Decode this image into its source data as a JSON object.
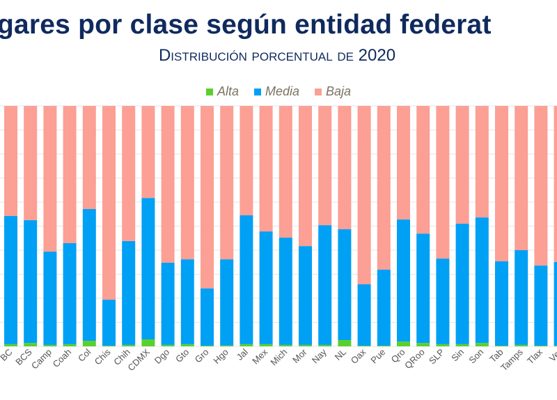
{
  "chart_data": {
    "type": "bar",
    "stacked": true,
    "title": "gares por clase según entidad federat",
    "subtitle": "Distribución porcentual de 2020",
    "xlabel": "",
    "ylabel": "",
    "ylim": [
      0,
      100
    ],
    "grid": true,
    "legend_position": "top",
    "categories": [
      "BC",
      "BCS",
      "Camp",
      "Coah",
      "Col",
      "Chis",
      "Chih",
      "CDMX",
      "Dgo",
      "Gto",
      "Gro",
      "Hgo",
      "Jal",
      "Mex",
      "Mich",
      "Mor",
      "Nay",
      "NL",
      "Oax",
      "Pue",
      "Qro",
      "QRoo",
      "SLP",
      "Sin",
      "Son",
      "Tab",
      "Tamps",
      "Tlax",
      "Ver"
    ],
    "series": [
      {
        "name": "Alta",
        "color": "#5ad02e",
        "values": [
          0.9,
          1.4,
          0.6,
          0.9,
          2.3,
          0.3,
          0.6,
          2.9,
          0.6,
          0.9,
          0.3,
          0.4,
          0.9,
          0.9,
          0.6,
          0.6,
          0.6,
          2.6,
          0.3,
          0.3,
          2.0,
          1.4,
          0.9,
          0.9,
          1.4,
          0.3,
          0.6,
          0.3,
          0.3
        ]
      },
      {
        "name": "Media",
        "color": "#00a0f5",
        "values": [
          53.3,
          51.1,
          38.8,
          42.0,
          54.8,
          19.1,
          43.2,
          58.8,
          34.2,
          35.3,
          23.8,
          35.8,
          53.6,
          46.9,
          44.6,
          41.1,
          49.8,
          46.1,
          25.5,
          31.6,
          50.8,
          45.5,
          35.6,
          50.1,
          52.2,
          35.1,
          39.4,
          33.3,
          34.8
        ]
      },
      {
        "name": "Baja",
        "color": "#fc9f94",
        "values": [
          45.8,
          47.5,
          60.6,
          57.1,
          42.9,
          80.6,
          56.2,
          38.3,
          65.2,
          63.8,
          75.9,
          63.8,
          45.5,
          52.2,
          54.8,
          58.3,
          49.6,
          51.3,
          74.2,
          68.1,
          47.2,
          53.1,
          63.5,
          49.0,
          46.4,
          64.6,
          60.0,
          66.4,
          64.9
        ]
      }
    ]
  }
}
